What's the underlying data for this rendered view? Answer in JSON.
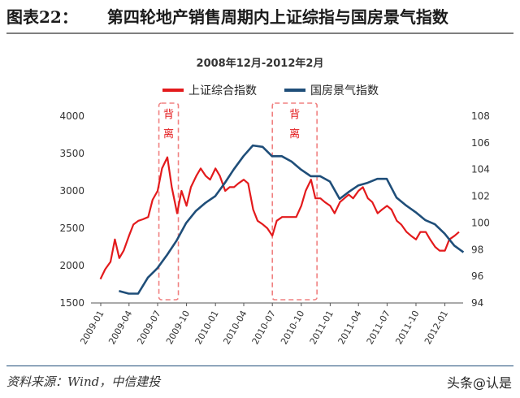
{
  "figure": {
    "number": "图表22：",
    "title": "第四轮地产销售周期内上证综指与国房景气指数",
    "source": "资料来源：Wind，中信建投",
    "watermark": "头条@认是"
  },
  "chart_data": {
    "type": "line",
    "subtitle": "2008年12月-2012年2月",
    "x_ticks": [
      "2009-01",
      "2009-04",
      "2009-07",
      "2009-10",
      "2010-01",
      "2010-04",
      "2010-07",
      "2010-10",
      "2011-01",
      "2011-04",
      "2011-07",
      "2011-10",
      "2012-01"
    ],
    "x_range": [
      "2008-12",
      "2012-02"
    ],
    "y_left": {
      "range": [
        1500,
        4000
      ],
      "ticks": [
        "1500",
        "2000",
        "2500",
        "3000",
        "3500",
        "4000"
      ]
    },
    "y_right": {
      "range": [
        94,
        108
      ],
      "ticks": [
        "94",
        "96",
        "98",
        "100",
        "102",
        "104",
        "106",
        "108"
      ]
    },
    "legend": {
      "placement": "top-center",
      "entries": [
        "上证综合指数",
        "国房景气指数"
      ]
    },
    "series": [
      {
        "name": "上证综合指数",
        "color": "#e31a1c",
        "axis": "left",
        "points": [
          [
            "2008-12-31",
            1820
          ],
          [
            "2009-01-15",
            1950
          ],
          [
            "2009-02-01",
            2050
          ],
          [
            "2009-02-15",
            2350
          ],
          [
            "2009-03-01",
            2100
          ],
          [
            "2009-03-15",
            2200
          ],
          [
            "2009-04-01",
            2400
          ],
          [
            "2009-04-15",
            2550
          ],
          [
            "2009-05-01",
            2600
          ],
          [
            "2009-05-15",
            2620
          ],
          [
            "2009-06-01",
            2650
          ],
          [
            "2009-06-15",
            2880
          ],
          [
            "2009-07-01",
            3000
          ],
          [
            "2009-07-15",
            3300
          ],
          [
            "2009-08-01",
            3450
          ],
          [
            "2009-08-15",
            3050
          ],
          [
            "2009-09-01",
            2700
          ],
          [
            "2009-09-15",
            3000
          ],
          [
            "2009-10-01",
            2800
          ],
          [
            "2009-10-15",
            3050
          ],
          [
            "2009-11-01",
            3200
          ],
          [
            "2009-11-15",
            3300
          ],
          [
            "2009-12-01",
            3200
          ],
          [
            "2009-12-15",
            3150
          ],
          [
            "2010-01-01",
            3300
          ],
          [
            "2010-01-15",
            3200
          ],
          [
            "2010-02-01",
            3000
          ],
          [
            "2010-02-15",
            3050
          ],
          [
            "2010-03-01",
            3050
          ],
          [
            "2010-03-15",
            3100
          ],
          [
            "2010-04-01",
            3150
          ],
          [
            "2010-04-15",
            3100
          ],
          [
            "2010-05-01",
            2750
          ],
          [
            "2010-05-15",
            2600
          ],
          [
            "2010-06-01",
            2550
          ],
          [
            "2010-06-15",
            2500
          ],
          [
            "2010-07-01",
            2400
          ],
          [
            "2010-07-15",
            2600
          ],
          [
            "2010-08-01",
            2650
          ],
          [
            "2010-08-15",
            2650
          ],
          [
            "2010-09-01",
            2650
          ],
          [
            "2010-09-15",
            2650
          ],
          [
            "2010-10-01",
            2800
          ],
          [
            "2010-10-15",
            3000
          ],
          [
            "2010-11-01",
            3150
          ],
          [
            "2010-11-15",
            2900
          ],
          [
            "2010-12-01",
            2900
          ],
          [
            "2010-12-15",
            2850
          ],
          [
            "2011-01-01",
            2800
          ],
          [
            "2011-01-15",
            2700
          ],
          [
            "2011-02-01",
            2850
          ],
          [
            "2011-02-15",
            2900
          ],
          [
            "2011-03-01",
            2950
          ],
          [
            "2011-03-15",
            2900
          ],
          [
            "2011-04-01",
            3000
          ],
          [
            "2011-04-15",
            3050
          ],
          [
            "2011-05-01",
            2900
          ],
          [
            "2011-05-15",
            2850
          ],
          [
            "2011-06-01",
            2700
          ],
          [
            "2011-06-15",
            2750
          ],
          [
            "2011-07-01",
            2800
          ],
          [
            "2011-07-15",
            2750
          ],
          [
            "2011-08-01",
            2600
          ],
          [
            "2011-08-15",
            2550
          ],
          [
            "2011-09-01",
            2450
          ],
          [
            "2011-09-15",
            2400
          ],
          [
            "2011-10-01",
            2350
          ],
          [
            "2011-10-15",
            2450
          ],
          [
            "2011-11-01",
            2450
          ],
          [
            "2011-11-15",
            2350
          ],
          [
            "2011-12-01",
            2250
          ],
          [
            "2011-12-15",
            2200
          ],
          [
            "2012-01-01",
            2200
          ],
          [
            "2012-01-15",
            2350
          ],
          [
            "2012-02-01",
            2400
          ],
          [
            "2012-02-15",
            2450
          ]
        ]
      },
      {
        "name": "国房景气指数",
        "color": "#1f4e79",
        "axis": "right",
        "points": [
          [
            "2009-02-28",
            94.9
          ],
          [
            "2009-03-31",
            94.7
          ],
          [
            "2009-04-30",
            94.7
          ],
          [
            "2009-05-31",
            95.9
          ],
          [
            "2009-06-30",
            96.6
          ],
          [
            "2009-07-31",
            97.6
          ],
          [
            "2009-08-31",
            98.7
          ],
          [
            "2009-09-30",
            100.0
          ],
          [
            "2009-10-31",
            100.9
          ],
          [
            "2009-11-30",
            101.5
          ],
          [
            "2009-12-31",
            102.0
          ],
          [
            "2010-01-31",
            103.0
          ],
          [
            "2010-02-28",
            104.0
          ],
          [
            "2010-03-31",
            105.0
          ],
          [
            "2010-04-30",
            105.8
          ],
          [
            "2010-05-31",
            105.7
          ],
          [
            "2010-06-30",
            105.0
          ],
          [
            "2010-07-31",
            105.0
          ],
          [
            "2010-08-31",
            104.6
          ],
          [
            "2010-09-30",
            104.0
          ],
          [
            "2010-10-31",
            103.5
          ],
          [
            "2010-11-30",
            103.5
          ],
          [
            "2010-12-31",
            103.1
          ],
          [
            "2011-01-31",
            101.8
          ],
          [
            "2011-02-28",
            102.3
          ],
          [
            "2011-03-31",
            102.8
          ],
          [
            "2011-04-30",
            103.0
          ],
          [
            "2011-05-31",
            103.3
          ],
          [
            "2011-06-30",
            103.3
          ],
          [
            "2011-07-31",
            101.9
          ],
          [
            "2011-08-31",
            101.3
          ],
          [
            "2011-09-30",
            100.8
          ],
          [
            "2011-10-31",
            100.2
          ],
          [
            "2011-11-30",
            99.9
          ],
          [
            "2011-12-31",
            99.2
          ],
          [
            "2012-01-31",
            98.3
          ],
          [
            "2012-02-29",
            97.8
          ]
        ]
      }
    ],
    "annotations": [
      {
        "label": "背离",
        "from": "2009-07-05",
        "to": "2009-09-05"
      },
      {
        "label": "背离",
        "from": "2010-07-01",
        "to": "2010-11-20"
      }
    ]
  }
}
